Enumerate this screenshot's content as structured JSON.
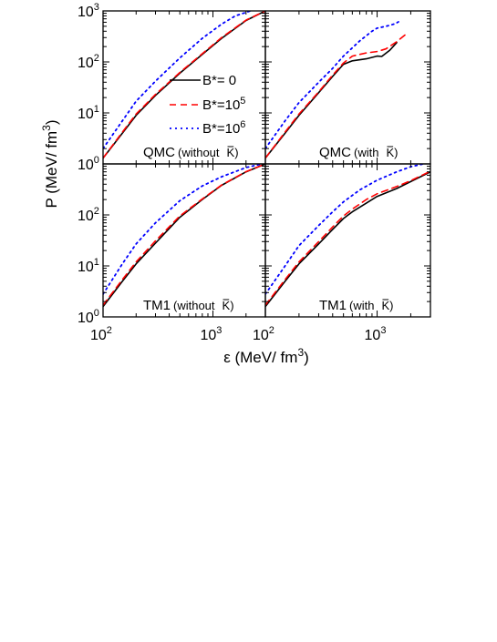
{
  "figure": {
    "ylabel": "P (MeV/ fm",
    "ylabel_sup": "3",
    "ylabel_close": ")",
    "xlabel": "ε (MeV/ fm",
    "xlabel_sup": "3",
    "xlabel_close": ")"
  },
  "legend": {
    "placement": "upper-left panel, middle-right",
    "entries": [
      {
        "prefix": "B*= 0",
        "sup": ""
      },
      {
        "prefix": "B*=10",
        "sup": "5"
      },
      {
        "prefix": "B*=10",
        "sup": "6"
      }
    ]
  },
  "colors": {
    "b0": "#000000",
    "b5": "#ff0000",
    "b6": "#0000ff"
  },
  "chart_data": [
    {
      "type": "line",
      "panel": "top-left",
      "label_text": "QMC",
      "label_paren": "(without",
      "label_kbar": "K",
      "label_close": ")",
      "x_scale": "log",
      "y_scale": "log",
      "xlim": [
        100,
        3000
      ],
      "ylim": [
        1,
        1000
      ],
      "series": [
        {
          "name": "B*= 0",
          "style": "solid",
          "color": "#000000",
          "x": [
            100,
            150,
            200,
            300,
            500,
            800,
            1200,
            2000,
            3000
          ],
          "y": [
            1.3,
            4,
            9,
            22,
            60,
            140,
            290,
            650,
            1000
          ]
        },
        {
          "name": "B*=10^5",
          "style": "dashed",
          "color": "#ff0000",
          "x": [
            100,
            150,
            200,
            300,
            500,
            800,
            1200,
            2000,
            3000
          ],
          "y": [
            1.3,
            4.2,
            9.5,
            23,
            62,
            145,
            300,
            660,
            1000
          ]
        },
        {
          "name": "B*=10^6",
          "style": "dotted",
          "color": "#0000ff",
          "x": [
            100,
            150,
            200,
            300,
            500,
            800,
            1200,
            1600,
            2200
          ],
          "y": [
            2,
            7,
            17,
            42,
            120,
            290,
            550,
            800,
            1000
          ]
        }
      ]
    },
    {
      "type": "line",
      "panel": "top-right",
      "label_text": "QMC",
      "label_paren": "(with",
      "label_kbar": "K",
      "label_close": ")",
      "x_scale": "log",
      "y_scale": "log",
      "xlim": [
        100,
        3000
      ],
      "ylim": [
        1,
        1000
      ],
      "series": [
        {
          "name": "B*= 0",
          "style": "solid",
          "color": "#000000",
          "x": [
            100,
            150,
            200,
            300,
            400,
            500,
            600,
            800,
            1000,
            1100,
            1300,
            1500
          ],
          "y": [
            1.3,
            4,
            9,
            25,
            52,
            90,
            105,
            115,
            130,
            128,
            170,
            240
          ]
        },
        {
          "name": "B*=10^5",
          "style": "dashed",
          "color": "#ff0000",
          "x": [
            100,
            150,
            200,
            300,
            400,
            500,
            600,
            800,
            1000,
            1200,
            1500,
            1900
          ],
          "y": [
            1.3,
            4.2,
            9.5,
            26,
            55,
            95,
            130,
            150,
            160,
            180,
            250,
            380
          ]
        },
        {
          "name": "B*=10^6",
          "style": "dotted",
          "color": "#0000ff",
          "x": [
            100,
            150,
            200,
            300,
            400,
            500,
            700,
            900,
            1000,
            1200,
            1450,
            1550
          ],
          "y": [
            2,
            7,
            16,
            40,
            75,
            130,
            260,
            400,
            460,
            500,
            560,
            610
          ]
        }
      ]
    },
    {
      "type": "line",
      "panel": "bottom-left",
      "label_text": "TM1",
      "label_paren": "(without",
      "label_kbar": "K",
      "label_close": ")",
      "x_scale": "log",
      "y_scale": "log",
      "xlim": [
        100,
        3000
      ],
      "ylim": [
        1,
        1000
      ],
      "series": [
        {
          "name": "B*= 0",
          "style": "solid",
          "color": "#000000",
          "x": [
            100,
            150,
            200,
            300,
            500,
            800,
            1200,
            2000,
            3000
          ],
          "y": [
            1.6,
            5,
            11,
            28,
            90,
            200,
            380,
            700,
            1000
          ]
        },
        {
          "name": "B*=10^5",
          "style": "dashed",
          "color": "#ff0000",
          "x": [
            100,
            150,
            200,
            300,
            500,
            800,
            1200,
            2000,
            3000
          ],
          "y": [
            1.7,
            5.4,
            12,
            31,
            95,
            205,
            385,
            705,
            1000
          ]
        },
        {
          "name": "B*=10^6",
          "style": "dotted",
          "color": "#0000ff",
          "x": [
            100,
            150,
            200,
            300,
            500,
            800,
            1200,
            2000,
            2800
          ],
          "y": [
            2.8,
            11,
            27,
            70,
            190,
            370,
            560,
            850,
            1000
          ]
        }
      ]
    },
    {
      "type": "line",
      "panel": "bottom-right",
      "label_text": "TM1",
      "label_paren": "(with",
      "label_kbar": "K",
      "label_close": ")",
      "x_scale": "log",
      "y_scale": "log",
      "xlim": [
        100,
        3000
      ],
      "ylim": [
        1,
        1000
      ],
      "series": [
        {
          "name": "B*= 0",
          "style": "solid",
          "color": "#000000",
          "x": [
            100,
            150,
            200,
            300,
            400,
            500,
            600,
            800,
            1000,
            1500,
            2000,
            3000
          ],
          "y": [
            1.6,
            5,
            11,
            27,
            52,
            85,
            115,
            170,
            230,
            330,
            450,
            700
          ]
        },
        {
          "name": "B*=10^5",
          "style": "dashed",
          "color": "#ff0000",
          "x": [
            100,
            150,
            200,
            300,
            400,
            500,
            600,
            800,
            1000,
            1500,
            2000,
            3000
          ],
          "y": [
            1.7,
            5.4,
            12,
            30,
            58,
            95,
            130,
            200,
            260,
            360,
            470,
            720
          ]
        },
        {
          "name": "B*=10^6",
          "style": "dotted",
          "color": "#0000ff",
          "x": [
            100,
            150,
            200,
            300,
            400,
            500,
            700,
            1000,
            1500,
            2000,
            2600
          ],
          "y": [
            2.8,
            10,
            25,
            62,
            115,
            180,
            310,
            480,
            700,
            880,
            1000
          ]
        }
      ]
    }
  ]
}
